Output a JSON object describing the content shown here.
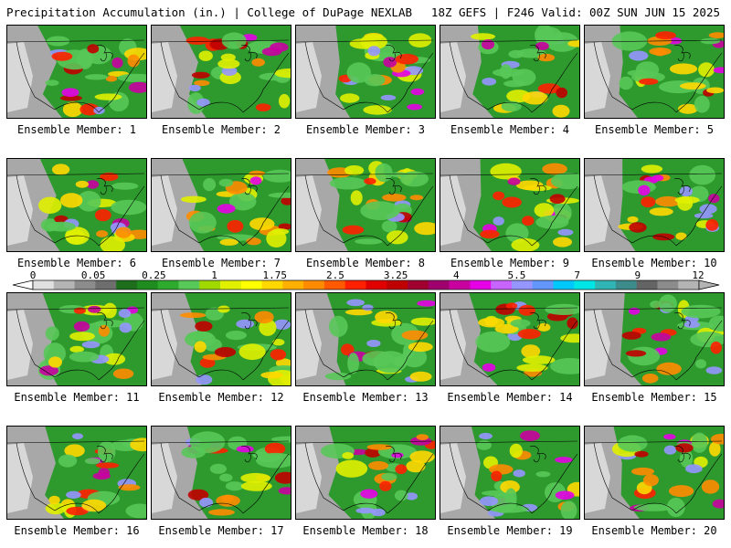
{
  "header": {
    "title": "Precipitation Accumulation (in.) | College of DuPage NEXLAB",
    "run_info": "18Z GEFS | F246 Valid: 00Z SUN JUN 15 2025"
  },
  "members": [
    {
      "label": "Ensemble Member: 1"
    },
    {
      "label": "Ensemble Member: 2"
    },
    {
      "label": "Ensemble Member: 3"
    },
    {
      "label": "Ensemble Member: 4"
    },
    {
      "label": "Ensemble Member: 5"
    },
    {
      "label": "Ensemble Member: 6"
    },
    {
      "label": "Ensemble Member: 7"
    },
    {
      "label": "Ensemble Member: 8"
    },
    {
      "label": "Ensemble Member: 9"
    },
    {
      "label": "Ensemble Member: 10"
    },
    {
      "label": "Ensemble Member: 11"
    },
    {
      "label": "Ensemble Member: 12"
    },
    {
      "label": "Ensemble Member: 13"
    },
    {
      "label": "Ensemble Member: 14"
    },
    {
      "label": "Ensemble Member: 15"
    },
    {
      "label": "Ensemble Member: 16"
    },
    {
      "label": "Ensemble Member: 17"
    },
    {
      "label": "Ensemble Member: 18"
    },
    {
      "label": "Ensemble Member: 19"
    },
    {
      "label": "Ensemble Member: 20"
    }
  ],
  "colorbar": {
    "tick_labels": [
      "0",
      "0.05",
      "0.25",
      "1",
      "1.75",
      "2.5",
      "3.25",
      "4",
      "5.5",
      "7",
      "9",
      "12"
    ],
    "colors": [
      "#e0e0e0",
      "#b4b4b4",
      "#8c8c8c",
      "#6e6e6e",
      "#1e6e1e",
      "#1e8c1e",
      "#2eaa2e",
      "#58c858",
      "#a0d800",
      "#e0f000",
      "#ffff00",
      "#ffd800",
      "#ffb000",
      "#ff8c00",
      "#ff5a00",
      "#ff2000",
      "#e00000",
      "#c00000",
      "#a00030",
      "#a0006e",
      "#c800a0",
      "#e600e6",
      "#c864ff",
      "#9696ff",
      "#6496ff",
      "#00c8ff",
      "#00e6e6",
      "#30b4b4",
      "#3c8c8c",
      "#646464",
      "#8c8c8c",
      "#b4b4b4"
    ]
  }
}
